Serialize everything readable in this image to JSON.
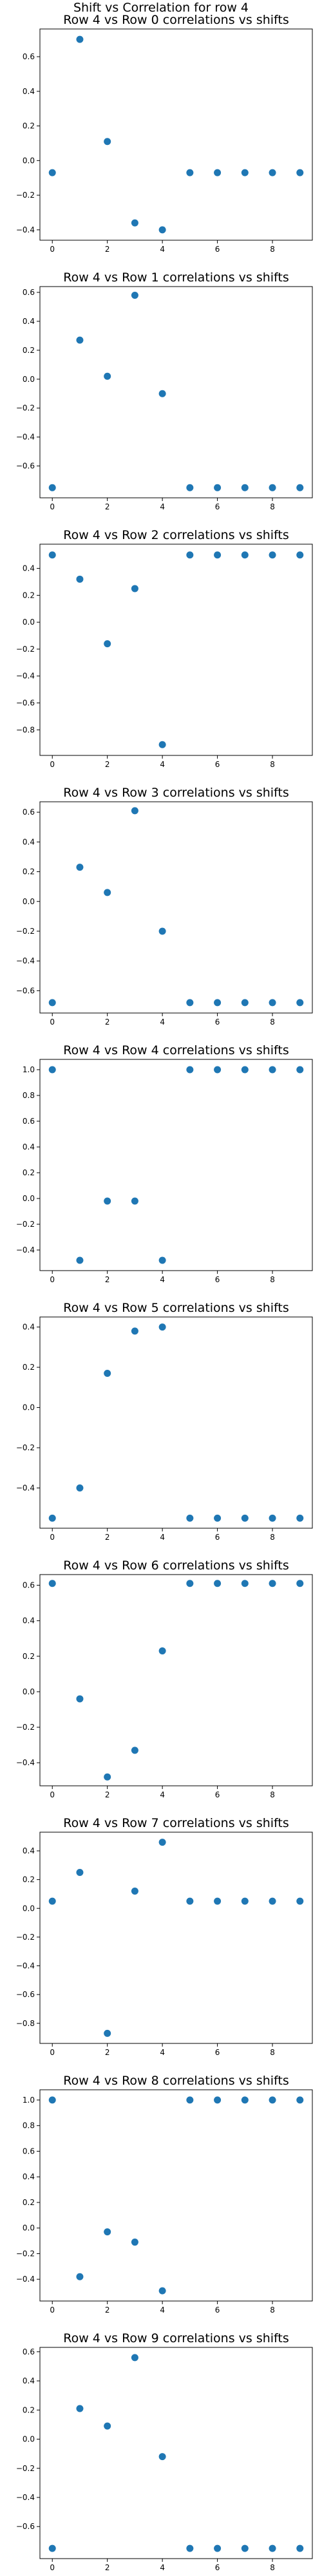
{
  "figure": {
    "suptitle": "Shift vs Correlation for row 4"
  },
  "chart_data": [
    {
      "type": "scatter",
      "title": "Row 4 vs Row 0 correlations vs shifts",
      "xlabel": "",
      "ylabel": "",
      "color": "#1f77b4",
      "xlim": [
        -0.45,
        9.45
      ],
      "ylim": [
        -0.46,
        0.76
      ],
      "xticks": [
        0,
        2,
        4,
        6,
        8
      ],
      "yticks": [
        -0.4,
        -0.2,
        0.0,
        0.2,
        0.4,
        0.6
      ],
      "ytick_labels": [
        "−0.4",
        "−0.2",
        "0.0",
        "0.2",
        "0.4",
        "0.6"
      ],
      "grid": false,
      "x": [
        0,
        1,
        2,
        3,
        4,
        5,
        6,
        7,
        8,
        9
      ],
      "y": [
        -0.07,
        0.7,
        0.11,
        -0.36,
        -0.4,
        -0.07,
        -0.07,
        -0.07,
        -0.07,
        -0.07
      ]
    },
    {
      "type": "scatter",
      "title": "Row 4 vs Row 1 correlations vs shifts",
      "xlabel": "",
      "ylabel": "",
      "color": "#1f77b4",
      "xlim": [
        -0.45,
        9.45
      ],
      "ylim": [
        -0.82,
        0.64
      ],
      "xticks": [
        0,
        2,
        4,
        6,
        8
      ],
      "yticks": [
        -0.6,
        -0.4,
        -0.2,
        0.0,
        0.2,
        0.4,
        0.6
      ],
      "ytick_labels": [
        "−0.6",
        "−0.4",
        "−0.2",
        "0.0",
        "0.2",
        "0.4",
        "0.6"
      ],
      "grid": false,
      "x": [
        0,
        1,
        2,
        3,
        4,
        5,
        6,
        7,
        8,
        9
      ],
      "y": [
        -0.75,
        0.27,
        0.02,
        0.58,
        -0.1,
        -0.75,
        -0.75,
        -0.75,
        -0.75,
        -0.75
      ]
    },
    {
      "type": "scatter",
      "title": "Row 4 vs Row 2 correlations vs shifts",
      "xlabel": "",
      "ylabel": "",
      "color": "#1f77b4",
      "xlim": [
        -0.45,
        9.45
      ],
      "ylim": [
        -0.99,
        0.58
      ],
      "xticks": [
        0,
        2,
        4,
        6,
        8
      ],
      "yticks": [
        -0.8,
        -0.6,
        -0.4,
        -0.2,
        0.0,
        0.2,
        0.4
      ],
      "ytick_labels": [
        "−0.8",
        "−0.6",
        "−0.4",
        "−0.2",
        "0.0",
        "0.2",
        "0.4"
      ],
      "grid": false,
      "x": [
        0,
        1,
        2,
        3,
        4,
        5,
        6,
        7,
        8,
        9
      ],
      "y": [
        0.5,
        0.32,
        -0.16,
        0.25,
        -0.91,
        0.5,
        0.5,
        0.5,
        0.5,
        0.5
      ]
    },
    {
      "type": "scatter",
      "title": "Row 4 vs Row 3 correlations vs shifts",
      "xlabel": "",
      "ylabel": "",
      "color": "#1f77b4",
      "xlim": [
        -0.45,
        9.45
      ],
      "ylim": [
        -0.75,
        0.67
      ],
      "xticks": [
        0,
        2,
        4,
        6,
        8
      ],
      "yticks": [
        -0.6,
        -0.4,
        -0.2,
        0.0,
        0.2,
        0.4,
        0.6
      ],
      "ytick_labels": [
        "−0.6",
        "−0.4",
        "−0.2",
        "0.0",
        "0.2",
        "0.4",
        "0.6"
      ],
      "grid": false,
      "x": [
        0,
        1,
        2,
        3,
        4,
        5,
        6,
        7,
        8,
        9
      ],
      "y": [
        -0.68,
        0.23,
        0.06,
        0.61,
        -0.2,
        -0.68,
        -0.68,
        -0.68,
        -0.68,
        -0.68
      ]
    },
    {
      "type": "scatter",
      "title": "Row 4 vs Row 4 correlations vs shifts",
      "xlabel": "",
      "ylabel": "",
      "color": "#1f77b4",
      "xlim": [
        -0.45,
        9.45
      ],
      "ylim": [
        -0.56,
        1.08
      ],
      "xticks": [
        0,
        2,
        4,
        6,
        8
      ],
      "yticks": [
        -0.4,
        -0.2,
        0.0,
        0.2,
        0.4,
        0.6,
        0.8,
        1.0
      ],
      "ytick_labels": [
        "−0.4",
        "−0.2",
        "0.0",
        "0.2",
        "0.4",
        "0.6",
        "0.8",
        "1.0"
      ],
      "grid": false,
      "x": [
        0,
        1,
        2,
        3,
        4,
        5,
        6,
        7,
        8,
        9
      ],
      "y": [
        1.0,
        -0.48,
        -0.02,
        -0.02,
        -0.48,
        1.0,
        1.0,
        1.0,
        1.0,
        1.0
      ]
    },
    {
      "type": "scatter",
      "title": "Row 4 vs Row 5 correlations vs shifts",
      "xlabel": "",
      "ylabel": "",
      "color": "#1f77b4",
      "xlim": [
        -0.45,
        9.45
      ],
      "ylim": [
        -0.6,
        0.45
      ],
      "xticks": [
        0,
        2,
        4,
        6,
        8
      ],
      "yticks": [
        -0.4,
        -0.2,
        0.0,
        0.2,
        0.4
      ],
      "ytick_labels": [
        "−0.4",
        "−0.2",
        "0.0",
        "0.2",
        "0.4"
      ],
      "grid": false,
      "x": [
        0,
        1,
        2,
        3,
        4,
        5,
        6,
        7,
        8,
        9
      ],
      "y": [
        -0.55,
        -0.4,
        0.17,
        0.38,
        0.4,
        -0.55,
        -0.55,
        -0.55,
        -0.55,
        -0.55
      ]
    },
    {
      "type": "scatter",
      "title": "Row 4 vs Row 6 correlations vs shifts",
      "xlabel": "",
      "ylabel": "",
      "color": "#1f77b4",
      "xlim": [
        -0.45,
        9.45
      ],
      "ylim": [
        -0.53,
        0.66
      ],
      "xticks": [
        0,
        2,
        4,
        6,
        8
      ],
      "yticks": [
        -0.4,
        -0.2,
        0.0,
        0.2,
        0.4,
        0.6
      ],
      "ytick_labels": [
        "−0.4",
        "−0.2",
        "0.0",
        "0.2",
        "0.4",
        "0.6"
      ],
      "grid": false,
      "x": [
        0,
        1,
        2,
        3,
        4,
        5,
        6,
        7,
        8,
        9
      ],
      "y": [
        0.61,
        -0.04,
        -0.48,
        -0.33,
        0.23,
        0.61,
        0.61,
        0.61,
        0.61,
        0.61
      ]
    },
    {
      "type": "scatter",
      "title": "Row 4 vs Row 7 correlations vs shifts",
      "xlabel": "",
      "ylabel": "",
      "color": "#1f77b4",
      "xlim": [
        -0.45,
        9.45
      ],
      "ylim": [
        -0.94,
        0.53
      ],
      "xticks": [
        0,
        2,
        4,
        6,
        8
      ],
      "yticks": [
        -0.8,
        -0.6,
        -0.4,
        -0.2,
        0.0,
        0.2,
        0.4
      ],
      "ytick_labels": [
        "−0.8",
        "−0.6",
        "−0.4",
        "−0.2",
        "0.0",
        "0.2",
        "0.4"
      ],
      "grid": false,
      "x": [
        0,
        1,
        2,
        3,
        4,
        5,
        6,
        7,
        8,
        9
      ],
      "y": [
        0.05,
        0.25,
        -0.87,
        0.12,
        0.46,
        0.05,
        0.05,
        0.05,
        0.05,
        0.05
      ]
    },
    {
      "type": "scatter",
      "title": "Row 4 vs Row 8 correlations vs shifts",
      "xlabel": "",
      "ylabel": "",
      "color": "#1f77b4",
      "xlim": [
        -0.45,
        9.45
      ],
      "ylim": [
        -0.57,
        1.08
      ],
      "xticks": [
        0,
        2,
        4,
        6,
        8
      ],
      "yticks": [
        -0.4,
        -0.2,
        0.0,
        0.2,
        0.4,
        0.6,
        0.8,
        1.0
      ],
      "ytick_labels": [
        "−0.4",
        "−0.2",
        "0.0",
        "0.2",
        "0.4",
        "0.6",
        "0.8",
        "1.0"
      ],
      "grid": false,
      "x": [
        0,
        1,
        2,
        3,
        4,
        5,
        6,
        7,
        8,
        9
      ],
      "y": [
        1.0,
        -0.38,
        -0.03,
        -0.11,
        -0.49,
        1.0,
        1.0,
        1.0,
        1.0,
        1.0
      ]
    },
    {
      "type": "scatter",
      "title": "Row 4 vs Row 9 correlations vs shifts",
      "xlabel": "",
      "ylabel": "",
      "color": "#1f77b4",
      "xlim": [
        -0.45,
        9.45
      ],
      "ylim": [
        -0.82,
        0.63
      ],
      "xticks": [
        0,
        2,
        4,
        6,
        8
      ],
      "yticks": [
        -0.6,
        -0.4,
        -0.2,
        0.0,
        0.2,
        0.4,
        0.6
      ],
      "ytick_labels": [
        "−0.6",
        "−0.4",
        "−0.2",
        "0.0",
        "0.2",
        "0.4",
        "0.6"
      ],
      "grid": false,
      "x": [
        0,
        1,
        2,
        3,
        4,
        5,
        6,
        7,
        8,
        9
      ],
      "y": [
        -0.75,
        0.21,
        0.09,
        0.56,
        -0.12,
        -0.75,
        -0.75,
        -0.75,
        -0.75,
        -0.75
      ]
    }
  ]
}
